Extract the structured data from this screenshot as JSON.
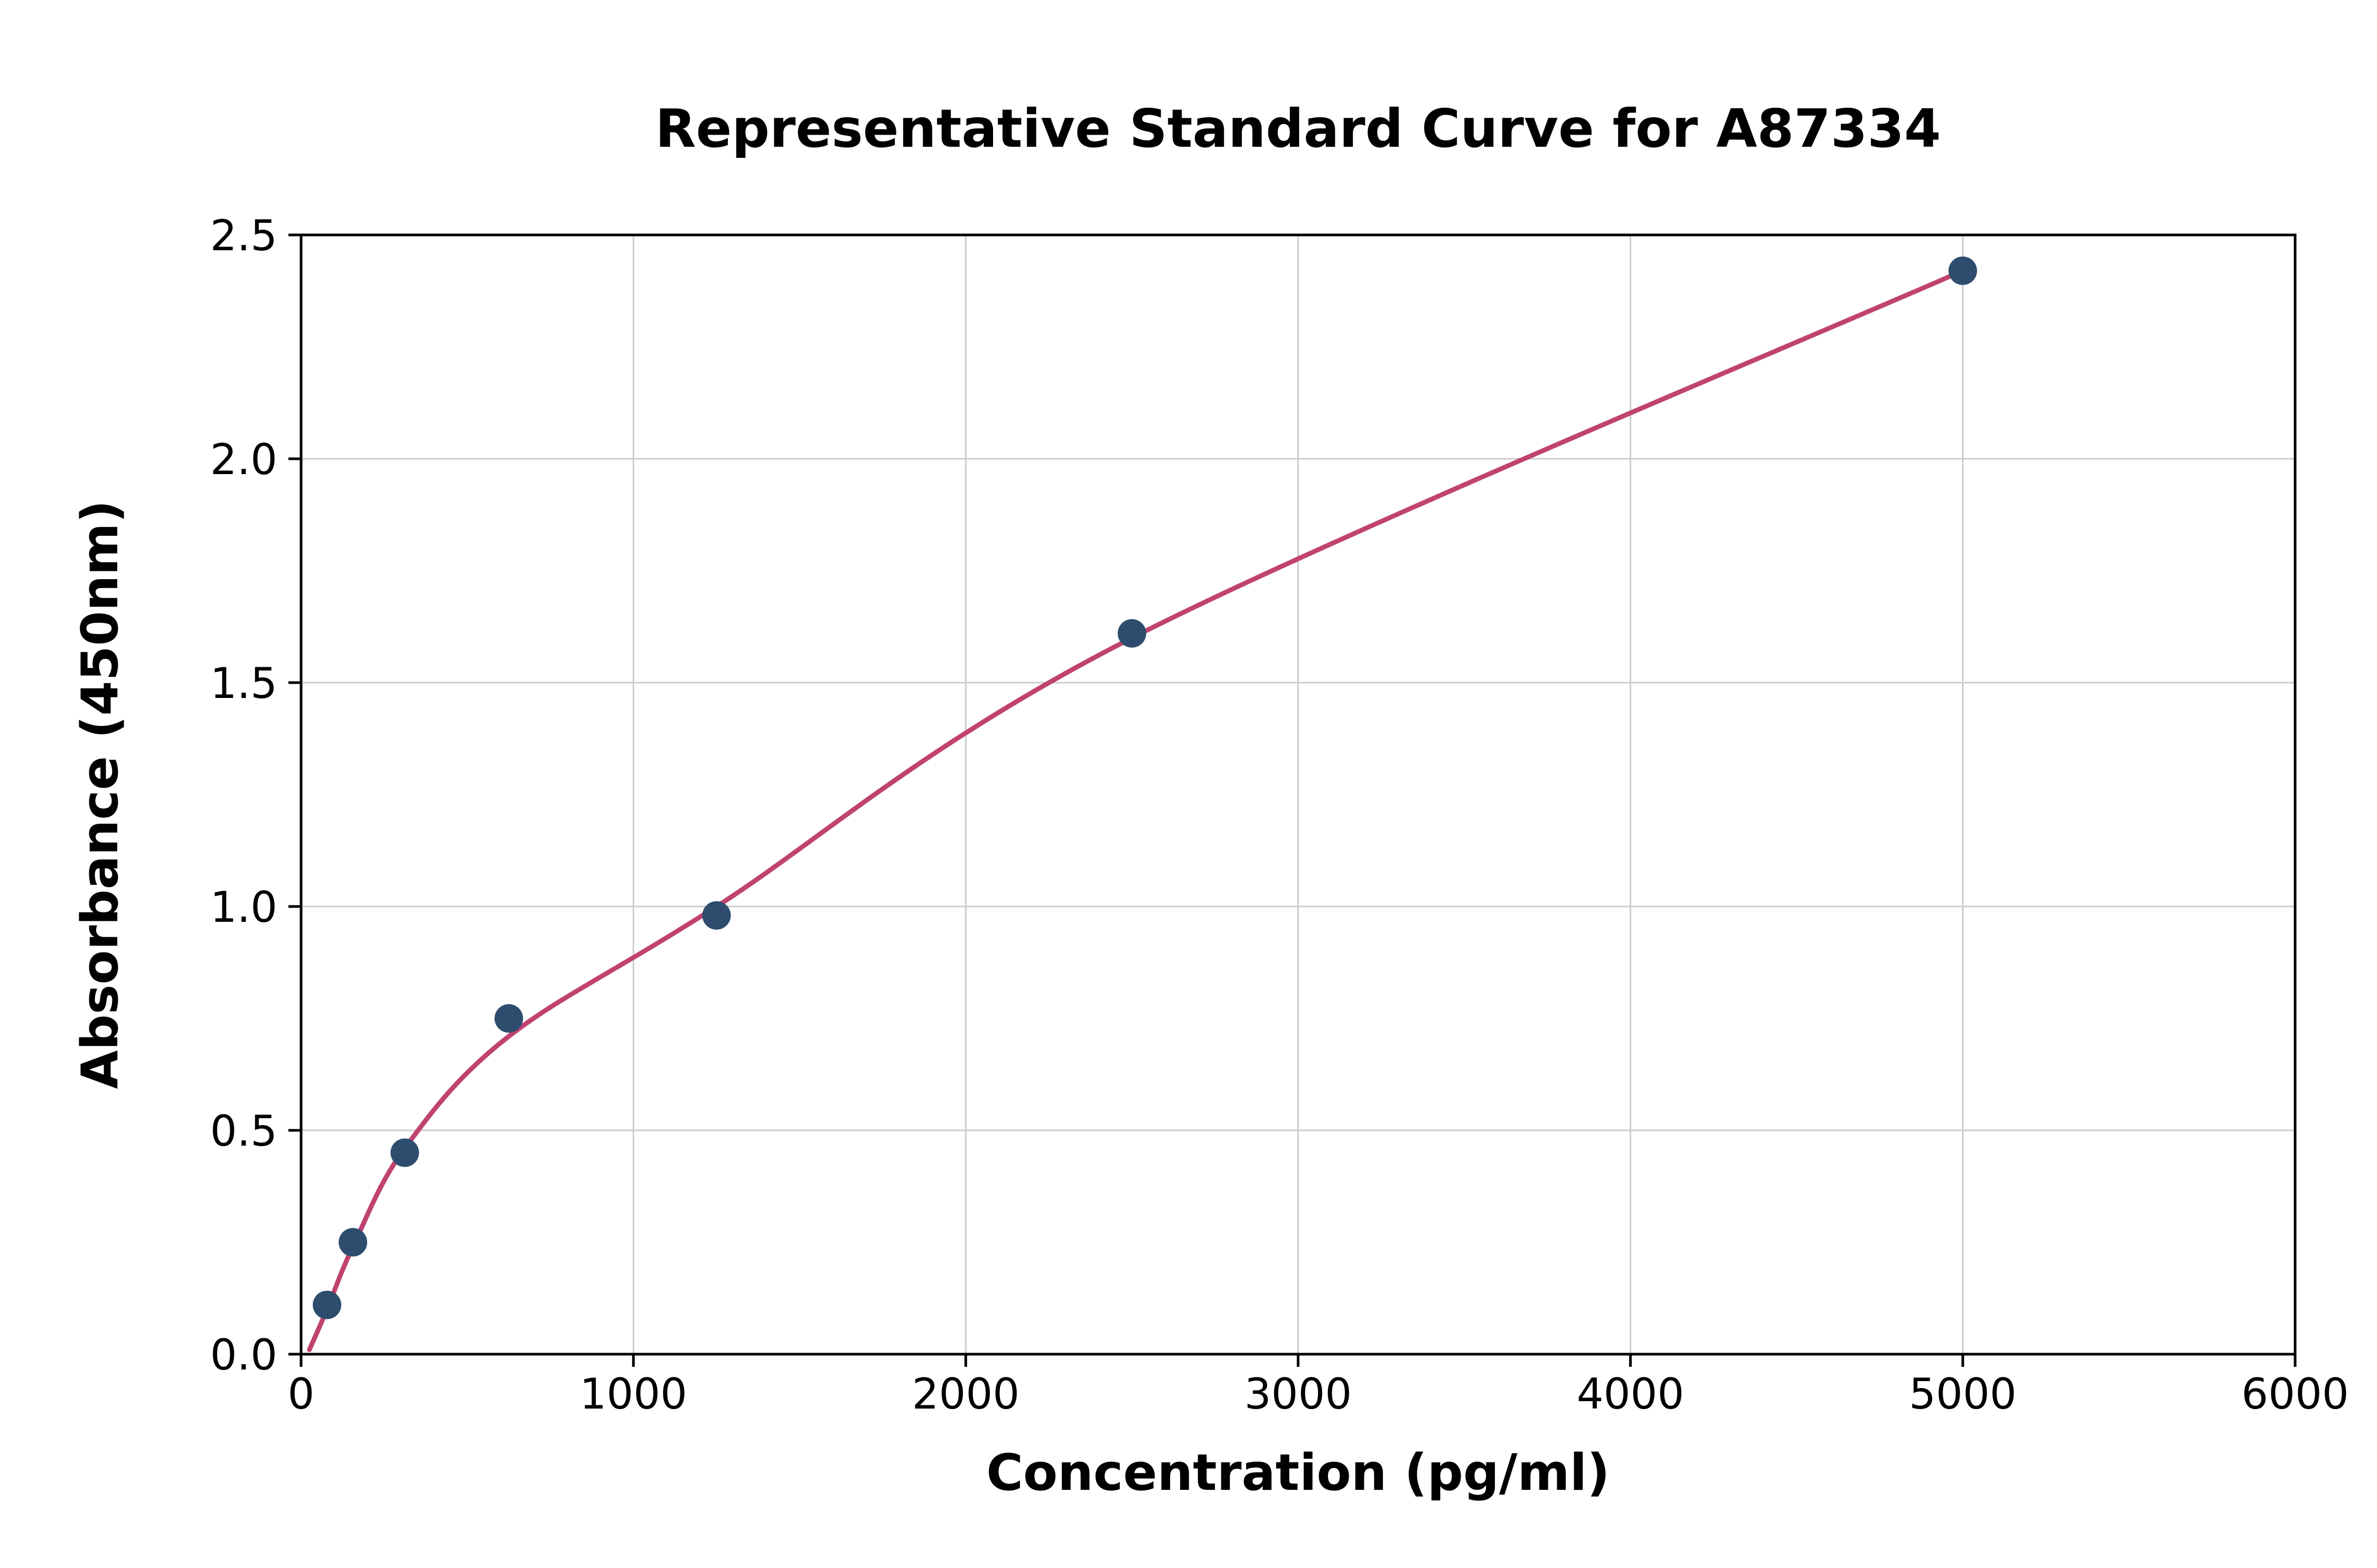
{
  "title": "Representative Standard Curve for A87334",
  "chart_data": {
    "type": "scatter",
    "title": "Representative Standard Curve for A87334",
    "xlabel": "Concentration (pg/ml)",
    "ylabel": "Absorbance (450nm)",
    "xlim": [
      0,
      6000
    ],
    "ylim": [
      0,
      2.5
    ],
    "x_ticks": [
      0,
      1000,
      2000,
      3000,
      4000,
      5000,
      6000
    ],
    "x_tick_labels": [
      "0",
      "1000",
      "2000",
      "3000",
      "4000",
      "5000",
      "6000"
    ],
    "y_ticks": [
      0.0,
      0.5,
      1.0,
      1.5,
      2.0,
      2.5
    ],
    "y_tick_labels": [
      "0.0",
      "0.5",
      "1.0",
      "1.5",
      "2.0",
      "2.5"
    ],
    "grid": true,
    "legend": "none",
    "points": [
      {
        "x": 78,
        "y": 0.11
      },
      {
        "x": 156,
        "y": 0.25
      },
      {
        "x": 312,
        "y": 0.45
      },
      {
        "x": 625,
        "y": 0.75
      },
      {
        "x": 1250,
        "y": 0.98
      },
      {
        "x": 2500,
        "y": 1.61
      },
      {
        "x": 5000,
        "y": 2.42
      }
    ],
    "fit_curve_anchors": [
      {
        "x": 25,
        "y": 0.01
      },
      {
        "x": 78,
        "y": 0.1
      },
      {
        "x": 156,
        "y": 0.24
      },
      {
        "x": 312,
        "y": 0.46
      },
      {
        "x": 625,
        "y": 0.71
      },
      {
        "x": 1250,
        "y": 1.0
      },
      {
        "x": 2500,
        "y": 1.6
      },
      {
        "x": 5000,
        "y": 2.42
      }
    ],
    "colors": {
      "points": "#2e4d6e",
      "curve": "#c0436f",
      "grid": "#cccccc",
      "frame": "#000000",
      "text": "#000000",
      "background": "#ffffff"
    }
  }
}
